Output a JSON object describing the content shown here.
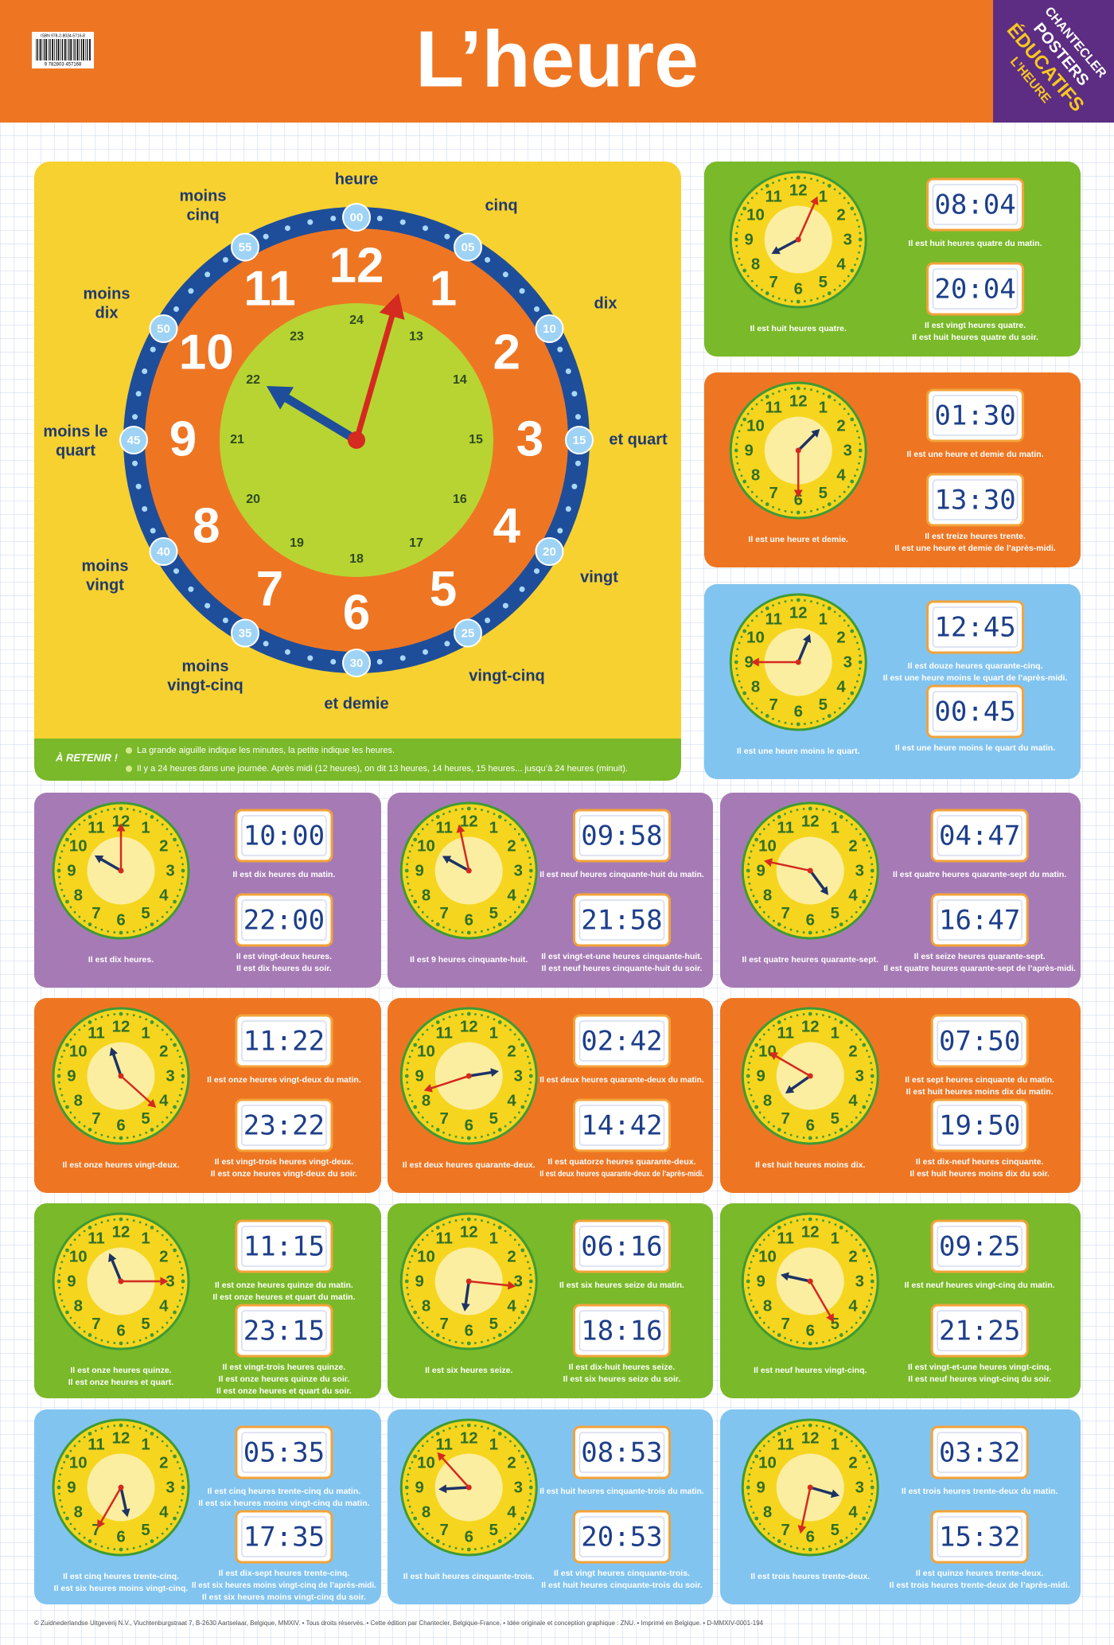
{
  "header": {
    "title": "L’heure",
    "isbn": "ISBN 978-2-8034-5716-8",
    "barcode": "9 782803 457168",
    "badge": [
      "CHANTECLER",
      "POSTERS",
      "ÉDUCATIFS",
      "L’HEURE"
    ]
  },
  "main_clock": {
    "hours": [
      "12",
      "1",
      "2",
      "3",
      "4",
      "5",
      "6",
      "7",
      "8",
      "9",
      "10",
      "11"
    ],
    "hours_24": [
      "24",
      "13",
      "14",
      "15",
      "16",
      "17",
      "18",
      "19",
      "20",
      "21",
      "22",
      "23"
    ],
    "minutes": [
      "00",
      "05",
      "10",
      "15",
      "20",
      "25",
      "30",
      "35",
      "40",
      "45",
      "50",
      "55"
    ],
    "labels": [
      [
        "heure"
      ],
      [
        "cinq"
      ],
      [
        "dix"
      ],
      [
        "et quart"
      ],
      [
        "vingt"
      ],
      [
        "vingt-cinq"
      ],
      [
        "et demie"
      ],
      [
        "moins",
        "vingt-cinq"
      ],
      [
        "moins",
        "vingt"
      ],
      [
        "moins le",
        "quart"
      ],
      [
        "moins",
        "dix"
      ],
      [
        "moins",
        "cinq"
      ]
    ]
  },
  "reminder": {
    "title": "À RETENIR !",
    "items": [
      "La grande aiguille indique les minutes, la petite indique les heures.",
      "Il y a 24 heures dans une journée. Après midi (12 heures), on dit 13 heures, 14 heures, 15 heures... jusqu’à 24 heures (minuit)."
    ]
  },
  "cards": [
    {
      "color": "#7ab929",
      "analog": [
        "Il est huit heures quatre."
      ],
      "digital": [
        {
          "time": "08:04",
          "caption": [
            "Il est huit heures quatre du matin."
          ]
        },
        {
          "time": "20:04",
          "caption": [
            "Il est vingt heures quatre.",
            "Il est huit heures quatre du soir."
          ]
        }
      ]
    },
    {
      "color": "#ee7623",
      "analog": [
        "Il est une heure et demie."
      ],
      "digital": [
        {
          "time": "01:30",
          "caption": [
            "Il est une heure et demie du matin."
          ]
        },
        {
          "time": "13:30",
          "caption": [
            "Il est treize heures trente.",
            "Il est une heure et demie de l’après-midi."
          ]
        }
      ]
    },
    {
      "color": "#82c4f0",
      "analog": [
        "Il est une heure moins le quart."
      ],
      "digital": [
        {
          "time": "12:45",
          "caption": [
            "Il est douze heures quarante-cinq.",
            "Il est une heure moins le quart de l’après-midi."
          ]
        },
        {
          "time": "00:45",
          "caption": [
            "Il est une heure moins le quart du matin."
          ]
        }
      ]
    },
    {
      "color": "#a67bb5",
      "analog": [
        "Il est dix heures."
      ],
      "digital": [
        {
          "time": "10:00",
          "caption": [
            "Il est dix heures du matin."
          ]
        },
        {
          "time": "22:00",
          "caption": [
            "Il est vingt-deux heures.",
            "Il est dix heures du soir."
          ]
        }
      ]
    },
    {
      "color": "#a67bb5",
      "analog": [
        "Il est 9 heures cinquante-huit."
      ],
      "digital": [
        {
          "time": "09:58",
          "caption": [
            "Il est neuf heures cinquante-huit du matin."
          ]
        },
        {
          "time": "21:58",
          "caption": [
            "Il est vingt-et-une heures cinquante-huit.",
            "Il est neuf heures cinquante-huit du soir."
          ]
        }
      ]
    },
    {
      "color": "#a67bb5",
      "analog": [
        "Il est quatre heures quarante-sept."
      ],
      "digital": [
        {
          "time": "04:47",
          "caption": [
            "Il est quatre heures quarante-sept du matin."
          ]
        },
        {
          "time": "16:47",
          "caption": [
            "Il est seize heures quarante-sept.",
            "Il est quatre heures quarante-sept de l’après-midi."
          ]
        }
      ]
    },
    {
      "color": "#ee7623",
      "analog": [
        "Il est onze heures vingt-deux."
      ],
      "digital": [
        {
          "time": "11:22",
          "caption": [
            "Il est onze heures vingt-deux du matin."
          ]
        },
        {
          "time": "23:22",
          "caption": [
            "Il est vingt-trois heures vingt-deux.",
            "Il est onze heures vingt-deux du soir."
          ]
        }
      ]
    },
    {
      "color": "#ee7623",
      "analog": [
        "Il est deux heures quarante-deux."
      ],
      "digital": [
        {
          "time": "02:42",
          "caption": [
            "Il est deux heures quarante-deux du matin."
          ]
        },
        {
          "time": "14:42",
          "caption": [
            "Il est quatorze heures quarante-deux.",
            "Il est deux heures quarante-deux de l’après-midi."
          ]
        }
      ]
    },
    {
      "color": "#ee7623",
      "analog": [
        "Il est huit heures moins dix."
      ],
      "digital": [
        {
          "time": "07:50",
          "caption": [
            "Il est sept heures cinquante du matin.",
            "Il est huit heures moins dix du matin."
          ]
        },
        {
          "time": "19:50",
          "caption": [
            "Il est dix-neuf heures cinquante.",
            "Il est huit heures moins dix du soir."
          ]
        }
      ]
    },
    {
      "color": "#7ab929",
      "analog": [
        "Il est onze heures quinze.",
        "Il est onze heures et quart."
      ],
      "digital": [
        {
          "time": "11:15",
          "caption": [
            "Il est onze heures quinze du matin.",
            "Il est onze heures et quart du matin."
          ]
        },
        {
          "time": "23:15",
          "caption": [
            "Il est vingt-trois heures quinze.",
            "Il est onze heures quinze du soir.",
            "Il est onze heures et quart du soir."
          ]
        }
      ]
    },
    {
      "color": "#7ab929",
      "analog": [
        "Il est six heures seize."
      ],
      "digital": [
        {
          "time": "06:16",
          "caption": [
            "Il est six heures seize du matin."
          ]
        },
        {
          "time": "18:16",
          "caption": [
            "Il est dix-huit heures seize.",
            "Il est six heures seize du soir."
          ]
        }
      ]
    },
    {
      "color": "#7ab929",
      "analog": [
        "Il est neuf heures vingt-cinq."
      ],
      "digital": [
        {
          "time": "09:25",
          "caption": [
            "Il est neuf heures vingt-cinq du matin."
          ]
        },
        {
          "time": "21:25",
          "caption": [
            "Il est vingt-et-une heures vingt-cinq.",
            "Il est neuf heures vingt-cinq du soir."
          ]
        }
      ]
    },
    {
      "color": "#82c4f0",
      "analog": [
        "Il est cinq heures trente-cinq.",
        "Il est six heures moins vingt-cinq."
      ],
      "digital": [
        {
          "time": "05:35",
          "caption": [
            "Il est cinq heures trente-cinq du matin.",
            "Il est six heures moins vingt-cinq du matin."
          ]
        },
        {
          "time": "17:35",
          "caption": [
            "Il est dix-sept heures trente-cinq.",
            "Il est six heures moins vingt-cinq de l’après-midi.",
            "Il est six heures moins vingt-cinq du soir."
          ]
        }
      ]
    },
    {
      "color": "#82c4f0",
      "analog": [
        "Il est huit heures cinquante-trois."
      ],
      "digital": [
        {
          "time": "08:53",
          "caption": [
            "Il est huit heures cinquante-trois du matin."
          ]
        },
        {
          "time": "20:53",
          "caption": [
            "Il est vingt heures cinquante-trois.",
            "Il est huit heures cinquante-trois du soir."
          ]
        }
      ]
    },
    {
      "color": "#82c4f0",
      "analog": [
        "Il est trois heures trente-deux."
      ],
      "digital": [
        {
          "time": "03:32",
          "caption": [
            "Il est trois heures trente-deux du matin."
          ]
        },
        {
          "time": "15:32",
          "caption": [
            "Il est quinze heures trente-deux.",
            "Il est trois heures trente-deux de l’après-midi."
          ]
        }
      ]
    }
  ],
  "footer": "© Zuidnederlandse Uitgeverij N.V., Vluchtenburgstraat 7, B-2630 Aartselaar, Belgique, MMXIV. • Tous droits réservés. • Cette édition par Chantecler, Belgique-France. • Idée originale et conception graphique : ZNU. • Imprimé en Belgique. • D-MMXIV-0001-194"
}
